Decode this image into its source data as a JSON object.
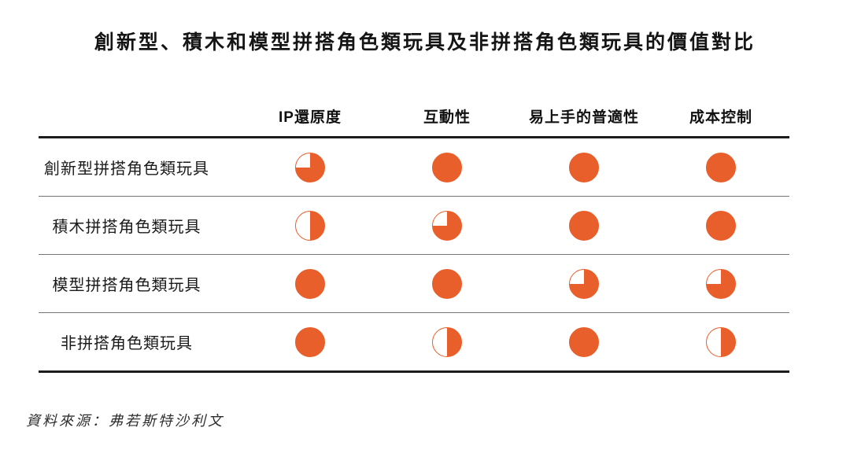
{
  "page": {
    "title": "創新型、積木和模型拼搭角色類玩具及非拼搭角色類玩具的價值對比",
    "source": "資料來源：弗若斯特沙利文"
  },
  "table": {
    "columns": [
      "IP還原度",
      "互動性",
      "易上手的普適性",
      "成本控制"
    ],
    "rows": [
      {
        "label": "創新型拼搭角色類玩具",
        "values": [
          75,
          100,
          100,
          100
        ]
      },
      {
        "label": "積木拼搭角色類玩具",
        "values": [
          50,
          75,
          100,
          100
        ]
      },
      {
        "label": "模型拼搭角色類玩具",
        "values": [
          100,
          100,
          75,
          75
        ]
      },
      {
        "label": "非拼搭角色類玩具",
        "values": [
          100,
          50,
          100,
          50
        ]
      }
    ]
  },
  "colors": {
    "accent": "#E85F2B",
    "line_dark": "#1c1c1c",
    "line_light": "#757575"
  },
  "chart_data": {
    "type": "table",
    "title": "創新型、積木和模型拼搭角色類玩具及非拼搭角色類玩具的價值對比",
    "columns": [
      "IP還原度",
      "互動性",
      "易上手的普適性",
      "成本控制"
    ],
    "rows": [
      "創新型拼搭角色類玩具",
      "積木拼搭角色類玩具",
      "模型拼搭角色類玩具",
      "非拼搭角色類玩具"
    ],
    "series": [
      {
        "name": "創新型拼搭角色類玩具",
        "values": [
          75,
          100,
          100,
          100
        ]
      },
      {
        "name": "積木拼搭角色類玩具",
        "values": [
          50,
          75,
          100,
          100
        ]
      },
      {
        "name": "模型拼搭角色類玩具",
        "values": [
          100,
          100,
          75,
          75
        ]
      },
      {
        "name": "非拼搭角色類玩具",
        "values": [
          100,
          50,
          100,
          50
        ]
      }
    ],
    "value_meaning": "harvey-ball fill percent (100 = full circle, 75 = three-quarter, 50 = half)",
    "marker": "harvey-ball",
    "legend_position": "none",
    "source": "資料來源：弗若斯特沙利文"
  }
}
